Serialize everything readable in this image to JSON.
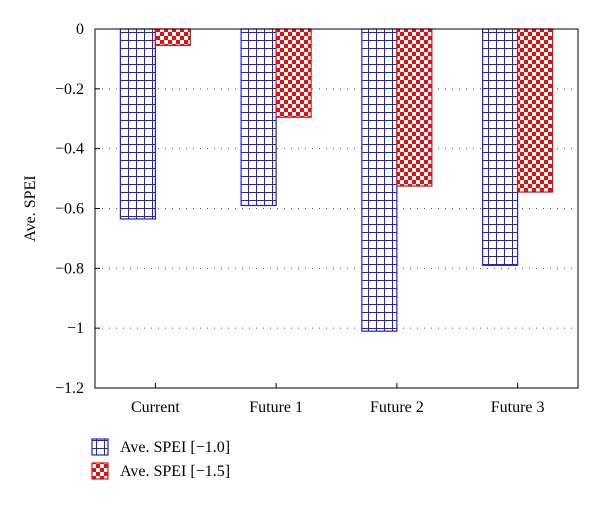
{
  "chart_data": {
    "type": "bar",
    "categories": [
      "Current",
      "Future 1",
      "Future 2",
      "Future 3"
    ],
    "series": [
      {
        "name": "Ave. SPEI [−1.0]",
        "values": [
          -0.635,
          -0.59,
          -1.01,
          -0.79
        ],
        "color": "#1f1fd6",
        "pattern": "grid"
      },
      {
        "name": "Ave. SPEI [−1.5]",
        "values": [
          -0.055,
          -0.295,
          -0.525,
          -0.545
        ],
        "color": "#e01010",
        "pattern": "checker"
      }
    ],
    "title": "",
    "xlabel": "",
    "ylabel": "Ave. SPEI",
    "ylim": [
      -1.2,
      0
    ],
    "yticks": [
      0,
      -0.2,
      -0.4,
      -0.6,
      -0.8,
      -1,
      -1.2
    ],
    "ytick_labels": [
      "0",
      "−0.2",
      "−0.4",
      "−0.6",
      "−0.8",
      "−1",
      "−1.2"
    ],
    "grid": "horizontal dotted",
    "legend_position": "bottom-left"
  }
}
